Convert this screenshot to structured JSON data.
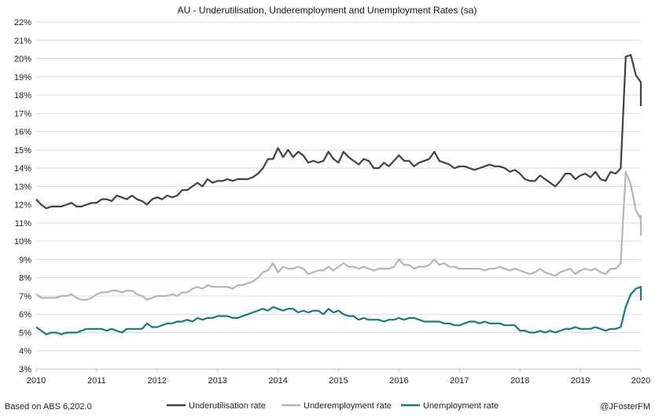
{
  "chart_data": {
    "type": "line",
    "title": "AU - Underutilisation, Underemployment and Unemployment Rates (sa)",
    "xlabel": "",
    "ylabel": "",
    "x_start": 2010.0,
    "x_step": 0.0833333,
    "xlim": [
      2010,
      2020
    ],
    "ylim": [
      3,
      22
    ],
    "x_ticks": [
      "2010",
      "2011",
      "2012",
      "2013",
      "2014",
      "2015",
      "2016",
      "2017",
      "2018",
      "2019",
      "2020"
    ],
    "y_ticks": [
      "3%",
      "4%",
      "5%",
      "6%",
      "7%",
      "8%",
      "9%",
      "10%",
      "11%",
      "12%",
      "13%",
      "14%",
      "15%",
      "16%",
      "17%",
      "18%",
      "19%",
      "20%",
      "21%",
      "22%"
    ],
    "grid": "horizontal",
    "legend_position": "bottom",
    "series": [
      {
        "name": "Underutilisation rate",
        "color": "#404040",
        "values": [
          12.3,
          12.0,
          11.8,
          11.9,
          11.9,
          11.9,
          12.0,
          12.1,
          11.9,
          11.9,
          12.0,
          12.1,
          12.1,
          12.3,
          12.3,
          12.2,
          12.5,
          12.4,
          12.3,
          12.5,
          12.3,
          12.2,
          12.0,
          12.3,
          12.4,
          12.3,
          12.5,
          12.4,
          12.5,
          12.8,
          12.8,
          13.0,
          13.2,
          13.0,
          13.4,
          13.2,
          13.3,
          13.3,
          13.4,
          13.3,
          13.4,
          13.4,
          13.4,
          13.5,
          13.7,
          14.0,
          14.5,
          14.5,
          15.1,
          14.6,
          15.0,
          14.6,
          14.9,
          14.7,
          14.3,
          14.4,
          14.3,
          14.4,
          14.9,
          14.5,
          14.3,
          14.9,
          14.6,
          14.4,
          14.2,
          14.5,
          14.4,
          14.0,
          14.0,
          14.3,
          14.1,
          14.4,
          14.7,
          14.4,
          14.4,
          14.1,
          14.3,
          14.4,
          14.5,
          14.9,
          14.4,
          14.3,
          14.2,
          14.0,
          14.1,
          14.1,
          14.0,
          13.9,
          14.0,
          14.1,
          14.2,
          14.1,
          14.1,
          14.0,
          13.8,
          13.9,
          13.7,
          13.4,
          13.3,
          13.3,
          13.6,
          13.4,
          13.2,
          13.0,
          13.3,
          13.7,
          13.7,
          13.4,
          13.6,
          13.7,
          13.5,
          13.8,
          13.4,
          13.3,
          13.8,
          13.7,
          14.0,
          20.1,
          20.2,
          19.1,
          18.7,
          18.0,
          18.3,
          17.4
        ]
      },
      {
        "name": "Underemployment rate",
        "color": "#b4b4b4",
        "values": [
          7.1,
          6.9,
          6.9,
          6.9,
          6.9,
          7.0,
          7.0,
          7.1,
          6.9,
          6.8,
          6.8,
          6.9,
          7.1,
          7.2,
          7.2,
          7.3,
          7.3,
          7.2,
          7.3,
          7.3,
          7.1,
          7.0,
          6.8,
          6.9,
          7.0,
          7.0,
          7.0,
          7.1,
          7.0,
          7.2,
          7.2,
          7.4,
          7.5,
          7.4,
          7.6,
          7.5,
          7.5,
          7.5,
          7.5,
          7.4,
          7.6,
          7.6,
          7.7,
          7.8,
          8.0,
          8.3,
          8.4,
          8.8,
          8.3,
          8.6,
          8.5,
          8.5,
          8.6,
          8.5,
          8.2,
          8.3,
          8.4,
          8.4,
          8.6,
          8.4,
          8.6,
          8.8,
          8.6,
          8.6,
          8.5,
          8.6,
          8.5,
          8.4,
          8.5,
          8.5,
          8.5,
          8.6,
          9.0,
          8.7,
          8.7,
          8.5,
          8.6,
          8.6,
          8.7,
          9.0,
          8.7,
          8.8,
          8.6,
          8.6,
          8.5,
          8.5,
          8.5,
          8.5,
          8.5,
          8.4,
          8.5,
          8.5,
          8.6,
          8.5,
          8.4,
          8.5,
          8.4,
          8.3,
          8.2,
          8.3,
          8.5,
          8.3,
          8.2,
          8.1,
          8.3,
          8.4,
          8.5,
          8.2,
          8.4,
          8.5,
          8.4,
          8.5,
          8.3,
          8.2,
          8.5,
          8.5,
          8.8,
          13.8,
          13.1,
          11.7,
          11.2,
          11.3,
          11.4,
          10.3
        ]
      },
      {
        "name": "Unemployment rate",
        "color": "#147a7a",
        "values": [
          5.3,
          5.1,
          4.9,
          5.0,
          5.0,
          4.9,
          5.0,
          5.0,
          5.0,
          5.1,
          5.2,
          5.2,
          5.2,
          5.2,
          5.1,
          5.2,
          5.1,
          5.0,
          5.2,
          5.2,
          5.2,
          5.2,
          5.5,
          5.3,
          5.3,
          5.4,
          5.5,
          5.5,
          5.6,
          5.6,
          5.7,
          5.6,
          5.8,
          5.7,
          5.8,
          5.8,
          5.9,
          5.9,
          5.9,
          5.8,
          5.8,
          5.9,
          6.0,
          6.1,
          6.2,
          6.3,
          6.2,
          6.4,
          6.3,
          6.2,
          6.3,
          6.3,
          6.1,
          6.2,
          6.1,
          6.2,
          6.2,
          6.0,
          6.3,
          6.1,
          6.2,
          6.0,
          5.9,
          5.9,
          5.7,
          5.8,
          5.7,
          5.7,
          5.7,
          5.6,
          5.7,
          5.7,
          5.8,
          5.7,
          5.8,
          5.8,
          5.7,
          5.6,
          5.6,
          5.6,
          5.6,
          5.5,
          5.5,
          5.4,
          5.4,
          5.5,
          5.6,
          5.6,
          5.5,
          5.6,
          5.5,
          5.5,
          5.5,
          5.4,
          5.4,
          5.4,
          5.1,
          5.1,
          5.0,
          5.0,
          5.1,
          5.0,
          5.1,
          5.0,
          5.1,
          5.2,
          5.2,
          5.3,
          5.2,
          5.2,
          5.2,
          5.3,
          5.2,
          5.1,
          5.2,
          5.2,
          5.3,
          6.4,
          7.1,
          7.4,
          7.5,
          6.8,
          6.9,
          7.0
        ]
      }
    ]
  },
  "footer": {
    "source": "Based on ABS 6,202.0",
    "credit": "@JFosterFM"
  }
}
